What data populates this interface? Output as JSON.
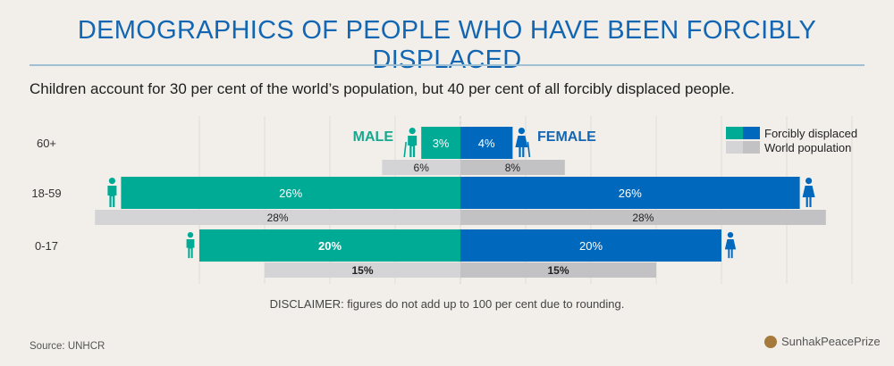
{
  "title": "DEMOGRAPHICS OF PEOPLE WHO HAVE BEEN FORCIBLY DISPLACED",
  "subtitle": "Children account for 30 per cent of the world’s population, but 40 per cent of all forcibly displaced people.",
  "disclaimer": "DISCLAIMER: figures do not add up to 100 per cent due to rounding.",
  "source": "Source: UNHCR",
  "brand": "SunhakPeacePrize",
  "colors": {
    "male_displaced": "#00ab96",
    "female_displaced": "#0169bd",
    "male_world": "#d4d4d6",
    "female_world": "#c2c2c4",
    "male_label": "#18a88f",
    "female_label": "#1266b2"
  },
  "chart_data": {
    "type": "bar",
    "orientation": "horizontal-diverging",
    "title": "DEMOGRAPHICS OF PEOPLE WHO HAVE BEEN FORCIBLY DISPLACED",
    "categories": [
      "60+",
      "18-59",
      "0-17"
    ],
    "side_labels": {
      "left": "MALE",
      "right": "FEMALE"
    },
    "series": [
      {
        "name": "Forcibly displaced",
        "side": "male",
        "values": [
          3,
          26,
          20
        ],
        "labels": [
          "3%",
          "26%",
          "20%"
        ]
      },
      {
        "name": "Forcibly displaced",
        "side": "female",
        "values": [
          4,
          26,
          20
        ],
        "labels": [
          "4%",
          "26%",
          "20%"
        ]
      },
      {
        "name": "World population",
        "side": "male",
        "values": [
          6,
          28,
          15
        ],
        "labels": [
          "6%",
          "28%",
          "15%"
        ]
      },
      {
        "name": "World population",
        "side": "female",
        "values": [
          8,
          28,
          15
        ],
        "labels": [
          "8%",
          "28%",
          "15%"
        ]
      }
    ],
    "legend": [
      {
        "label": "Forcibly displaced",
        "swatch": "displaced"
      },
      {
        "label": "World population",
        "swatch": "world"
      }
    ],
    "legend_position": "top-right",
    "bold_labels": [
      "20%",
      "15%"
    ],
    "xlim": [
      -30,
      30
    ],
    "grid": true
  }
}
